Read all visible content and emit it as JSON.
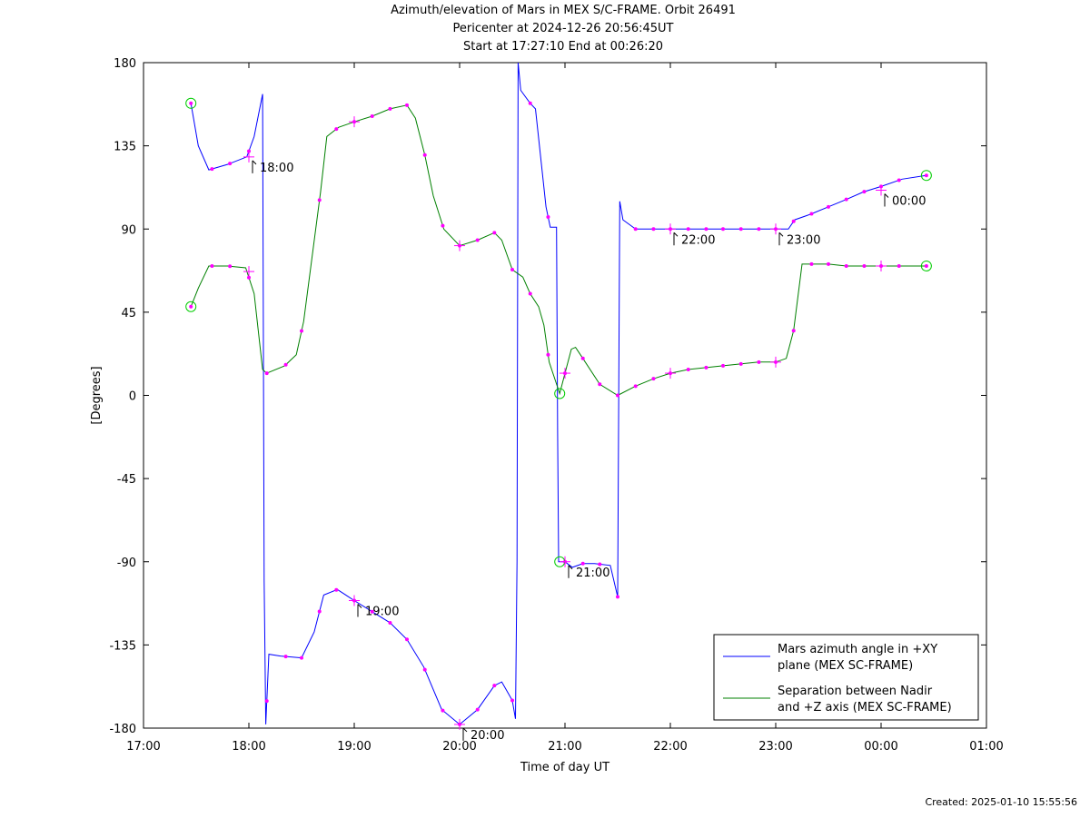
{
  "chart_data": {
    "type": "line",
    "title": [
      "Azimuth/elevation of Mars in MEX S/C-FRAME.  Orbit 26491",
      "Pericenter at 2024-12-26 20:56:45UT",
      "Start at 17:27:10 End at 00:26:20"
    ],
    "xlabel": "Time of day UT",
    "ylabel": "[Degrees]",
    "xlim": [
      17.0,
      25.0
    ],
    "ylim": [
      -180,
      180
    ],
    "x_ticks": [
      17,
      18,
      19,
      20,
      21,
      22,
      23,
      24,
      25
    ],
    "x_tick_labels": [
      "17:00",
      "18:00",
      "19:00",
      "20:00",
      "21:00",
      "22:00",
      "23:00",
      "00:00",
      "01:00"
    ],
    "y_ticks": [
      180,
      135,
      90,
      45,
      0,
      -45,
      -90,
      -135,
      -180
    ],
    "y_tick_labels": [
      "180",
      "135",
      "90",
      "45",
      "0",
      "-45",
      "-90",
      "-135",
      "-180"
    ],
    "legend_position": "bottom-right",
    "series": [
      {
        "name": "Mars azimuth angle in +XY plane (MEX SC-FRAME)",
        "legend_lines": [
          "Mars azimuth angle in +XY",
          "plane (MEX SC-FRAME)"
        ],
        "color": "#0000ff",
        "points": [
          [
            17.45,
            158
          ],
          [
            17.52,
            135
          ],
          [
            17.62,
            122
          ],
          [
            17.8,
            125
          ],
          [
            17.98,
            129
          ],
          [
            18.05,
            140
          ],
          [
            18.13,
            163
          ],
          [
            18.145,
            -100
          ],
          [
            18.16,
            -178
          ],
          [
            18.19,
            -140
          ],
          [
            18.3,
            -141
          ],
          [
            18.5,
            -142
          ],
          [
            18.62,
            -128
          ],
          [
            18.71,
            -108
          ],
          [
            18.84,
            -105
          ],
          [
            19.0,
            -111
          ],
          [
            19.17,
            -117
          ],
          [
            19.34,
            -123
          ],
          [
            19.5,
            -132
          ],
          [
            19.66,
            -147
          ],
          [
            19.83,
            -170
          ],
          [
            20.0,
            -178
          ],
          [
            20.17,
            -170
          ],
          [
            20.33,
            -157
          ],
          [
            20.4,
            -155
          ],
          [
            20.5,
            -165
          ],
          [
            20.53,
            -175
          ],
          [
            20.545,
            -90
          ],
          [
            20.555,
            180
          ],
          [
            20.58,
            165
          ],
          [
            20.67,
            158
          ],
          [
            20.72,
            155
          ],
          [
            20.82,
            102
          ],
          [
            20.86,
            91
          ],
          [
            20.92,
            91
          ],
          [
            20.93,
            -20
          ],
          [
            20.94,
            -90
          ],
          [
            21.0,
            -90
          ],
          [
            21.07,
            -93
          ],
          [
            21.17,
            -91
          ],
          [
            21.28,
            -91
          ],
          [
            21.43,
            -92
          ],
          [
            21.5,
            -109
          ],
          [
            21.52,
            105
          ],
          [
            21.55,
            95
          ],
          [
            21.67,
            90
          ],
          [
            21.83,
            90
          ],
          [
            22.0,
            90
          ],
          [
            22.5,
            90
          ],
          [
            23.0,
            90
          ],
          [
            23.12,
            90
          ],
          [
            23.18,
            95
          ],
          [
            23.33,
            98
          ],
          [
            23.5,
            102
          ],
          [
            23.67,
            106
          ],
          [
            23.83,
            110
          ],
          [
            24.0,
            113
          ],
          [
            24.2,
            117
          ],
          [
            24.43,
            119
          ]
        ],
        "markers_x": [
          17.45,
          17.65,
          17.82,
          18.0,
          18.17,
          18.35,
          18.5,
          18.67,
          18.83,
          19.0,
          19.17,
          19.34,
          19.5,
          19.67,
          19.84,
          20.0,
          20.17,
          20.33,
          20.5,
          20.67,
          20.84,
          21.0,
          21.17,
          21.33,
          21.5,
          21.67,
          21.84,
          22.0,
          22.17,
          22.34,
          22.5,
          22.67,
          22.84,
          23.0,
          23.17,
          23.34,
          23.5,
          23.67,
          23.84,
          24.0,
          24.17,
          24.43
        ]
      },
      {
        "name": "Separation between Nadir and +Z axis (MEX SC-FRAME)",
        "legend_lines": [
          "Separation between Nadir",
          "and +Z axis (MEX SC-FRAME)"
        ],
        "color": "#008000",
        "points": [
          [
            17.45,
            48
          ],
          [
            17.52,
            58
          ],
          [
            17.62,
            70
          ],
          [
            17.8,
            70
          ],
          [
            17.97,
            69
          ],
          [
            18.05,
            55
          ],
          [
            18.13,
            14
          ],
          [
            18.17,
            12
          ],
          [
            18.34,
            16
          ],
          [
            18.45,
            22
          ],
          [
            18.52,
            40
          ],
          [
            18.68,
            110
          ],
          [
            18.74,
            140
          ],
          [
            18.85,
            145
          ],
          [
            19.0,
            148
          ],
          [
            19.17,
            151
          ],
          [
            19.34,
            155
          ],
          [
            19.5,
            157
          ],
          [
            19.58,
            150
          ],
          [
            19.67,
            130
          ],
          [
            19.75,
            108
          ],
          [
            19.85,
            90
          ],
          [
            20.0,
            81
          ],
          [
            20.17,
            84
          ],
          [
            20.33,
            88
          ],
          [
            20.4,
            84
          ],
          [
            20.5,
            68
          ],
          [
            20.6,
            64
          ],
          [
            20.67,
            55
          ],
          [
            20.75,
            48
          ],
          [
            20.8,
            38
          ],
          [
            20.85,
            18
          ],
          [
            20.95,
            1
          ],
          [
            21.0,
            12
          ],
          [
            21.06,
            25
          ],
          [
            21.1,
            26
          ],
          [
            21.17,
            20
          ],
          [
            21.33,
            6
          ],
          [
            21.5,
            0
          ],
          [
            21.67,
            5
          ],
          [
            21.84,
            9
          ],
          [
            22.0,
            12
          ],
          [
            22.17,
            14
          ],
          [
            22.5,
            16
          ],
          [
            22.84,
            18
          ],
          [
            23.0,
            18
          ],
          [
            23.1,
            20
          ],
          [
            23.17,
            35
          ],
          [
            23.25,
            71
          ],
          [
            23.3,
            71
          ],
          [
            23.5,
            71
          ],
          [
            23.67,
            70
          ],
          [
            23.84,
            70
          ],
          [
            24.0,
            70
          ],
          [
            24.2,
            70
          ],
          [
            24.43,
            70
          ]
        ],
        "markers_x": [
          17.45,
          17.65,
          17.82,
          18.0,
          18.17,
          18.35,
          18.5,
          18.67,
          18.83,
          19.0,
          19.17,
          19.34,
          19.5,
          19.67,
          19.84,
          20.0,
          20.17,
          20.33,
          20.5,
          20.67,
          20.84,
          21.0,
          21.17,
          21.33,
          21.5,
          21.67,
          21.84,
          22.0,
          22.17,
          22.34,
          22.5,
          22.67,
          22.84,
          23.0,
          23.17,
          23.34,
          23.5,
          23.67,
          23.84,
          24.0,
          24.17,
          24.43
        ]
      }
    ],
    "circle_markers": [
      {
        "series": 0,
        "x": 17.45,
        "y": 158
      },
      {
        "series": 1,
        "x": 17.45,
        "y": 48
      },
      {
        "series": 0,
        "x": 20.95,
        "y": -90
      },
      {
        "series": 1,
        "x": 20.95,
        "y": 1
      },
      {
        "series": 0,
        "x": 24.43,
        "y": 119
      },
      {
        "series": 1,
        "x": 24.43,
        "y": 70
      }
    ],
    "hour_annotations": [
      {
        "x": 18.0,
        "y": 129,
        "label": "18:00"
      },
      {
        "x": 19.0,
        "y": -111,
        "label": "19:00"
      },
      {
        "x": 20.0,
        "y": -178,
        "label": "20:00"
      },
      {
        "x": 21.0,
        "y": -90,
        "label": "21:00"
      },
      {
        "x": 22.0,
        "y": 90,
        "label": "22:00"
      },
      {
        "x": 23.0,
        "y": 90,
        "label": "23:00"
      },
      {
        "x": 24.0,
        "y": 111,
        "label": "00:00"
      }
    ],
    "hour_crosses": [
      {
        "x": 18.0,
        "y": 67
      },
      {
        "x": 19.0,
        "y": 148
      },
      {
        "x": 20.0,
        "y": 81
      },
      {
        "x": 21.0,
        "y": 12
      },
      {
        "x": 22.0,
        "y": 12
      },
      {
        "x": 23.0,
        "y": 18
      },
      {
        "x": 24.0,
        "y": 70
      }
    ],
    "colors": {
      "marker": "#ff00ff",
      "circle": "#00cc00",
      "axis": "#000000"
    }
  },
  "footer": {
    "created": "Created: 2025-01-10 15:55:56"
  }
}
